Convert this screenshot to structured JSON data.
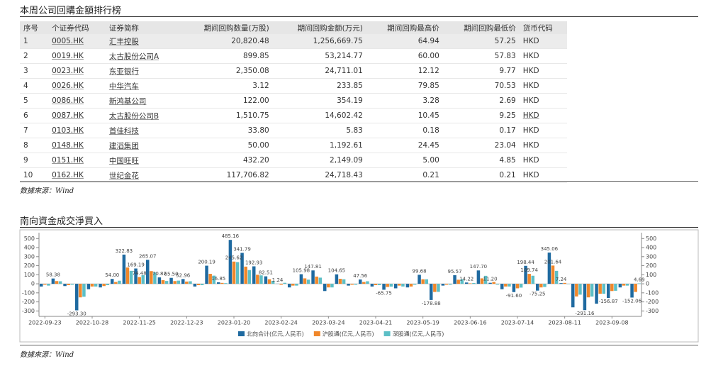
{
  "header": {
    "title": "本周公司回購金額排行榜"
  },
  "table": {
    "columns": [
      "序号",
      "个证券代码",
      "证券简称",
      "期间回购数量(万股)",
      "期间回购金额(万元)",
      "期间回购最高价",
      "期间回购最低价",
      "货币代码"
    ],
    "rows": [
      [
        "1",
        "0005.HK",
        "汇丰控股",
        "20,820.48",
        "1,256,669.75",
        "64.94",
        "57.25",
        "HKD"
      ],
      [
        "2",
        "0019.HK",
        "太古股份公司A",
        "899.85",
        "53,214.77",
        "60.00",
        "57.83",
        "HKD"
      ],
      [
        "3",
        "0023.HK",
        "东亚银行",
        "2,350.08",
        "24,711.01",
        "12.12",
        "9.77",
        "HKD"
      ],
      [
        "4",
        "0026.HK",
        "中华汽车",
        "3.12",
        "233.85",
        "79.85",
        "70.53",
        "HKD"
      ],
      [
        "5",
        "0086.HK",
        "新鸿基公司",
        "122.00",
        "354.19",
        "3.28",
        "2.69",
        "HKD"
      ],
      [
        "6",
        "0087.HK",
        "太古股份公司B",
        "1,510.75",
        "14,602.42",
        "10.45",
        "9.25",
        "HKD"
      ],
      [
        "7",
        "0103.HK",
        "首佳科技",
        "33.80",
        "5.83",
        "0.18",
        "0.17",
        "HKD"
      ],
      [
        "8",
        "0148.HK",
        "建滔集团",
        "50.00",
        "1,192.61",
        "24.45",
        "23.04",
        "HKD"
      ],
      [
        "9",
        "0151.HK",
        "中国旺旺",
        "432.20",
        "2,149.09",
        "5.00",
        "4.85",
        "HKD"
      ],
      [
        "10",
        "0162.HK",
        "世纪金花",
        "117,706.82",
        "24,718.43",
        "0.21",
        "0.21",
        "HKD"
      ]
    ]
  },
  "source1": "数據來源：Wind",
  "chart_data": {
    "type": "bar",
    "title": "南向資金成交淨買入",
    "categories": [
      "2022-09-23",
      null,
      null,
      null,
      "2022-10-28",
      null,
      null,
      null,
      "2022-11-25",
      null,
      null,
      null,
      "2022-12-23",
      null,
      null,
      null,
      "2023-01-20",
      null,
      null,
      null,
      "2023-02-24",
      null,
      null,
      null,
      "2023-03-24",
      null,
      null,
      null,
      "2023-04-21",
      null,
      null,
      null,
      "2023-05-19",
      null,
      null,
      null,
      "2023-06-16",
      null,
      null,
      null,
      "2023-07-14",
      null,
      null,
      null,
      "2023-08-11",
      null,
      null,
      null,
      "2023-09-08",
      null,
      null
    ],
    "series": [
      {
        "name": "北向合计(亿元,人民币)",
        "color": "#1f6aa0",
        "values": [
          -30,
          58.38,
          -25,
          -293.3,
          -60,
          -40,
          54.0,
          322.83,
          169.19,
          265.07,
          70.82,
          65.5,
          52.96,
          -30,
          200.19,
          16.85,
          485.16,
          341.79,
          192.93,
          82.51,
          1.24,
          -40,
          105.98,
          147.81,
          -80,
          104.65,
          -20,
          47.56,
          -30,
          -65.75,
          -50,
          -40,
          99.68,
          -178.88,
          -20,
          95.57,
          14.22,
          147.7,
          11.2,
          -60,
          -91.6,
          198.44,
          -75.25,
          345.06,
          7.24,
          -260,
          -291.16,
          -220,
          -156.87,
          -40,
          -152.06
        ],
        "value_labels": [
          null,
          "58.38",
          null,
          "-293.30",
          null,
          null,
          "54.00",
          "322.83",
          "169.19",
          "265.07",
          "70.82",
          "65.50",
          "52.96",
          null,
          "200.19",
          "16.85",
          "485.16",
          "341.79",
          "192.93",
          "82.51",
          "1.24",
          null,
          "105.98",
          "147.81",
          null,
          "104.65",
          null,
          "47.56",
          null,
          "-65.75",
          null,
          null,
          "99.68",
          "-178.88",
          null,
          "95.57",
          "14.22",
          "147.70",
          "11.20",
          null,
          "-91.60",
          "198.44",
          "-75.25",
          "345.06",
          "7.24",
          null,
          "-291.16",
          null,
          "-156.87",
          null,
          "-152.06"
        ]
      },
      {
        "name": "沪股通(亿元,人民币)",
        "color": "#f0872a",
        "values": [
          -10,
          30,
          -15,
          -150,
          -30,
          -25,
          20,
          180,
          74.48,
          140,
          40,
          30,
          25,
          -15,
          110,
          10,
          245.62,
          190,
          100,
          50,
          -10,
          -20,
          60,
          80,
          -40,
          55,
          -10,
          20,
          -15,
          -35,
          -20,
          -30,
          50,
          -90,
          -10,
          45,
          5,
          60,
          20,
          -30,
          -50,
          109.74,
          -40,
          201.64,
          10,
          -140,
          -150,
          -110,
          -80,
          -20,
          -90
        ],
        "value_labels": [
          null,
          null,
          null,
          null,
          null,
          null,
          null,
          null,
          "74.48",
          null,
          null,
          null,
          null,
          null,
          null,
          null,
          "245.62",
          null,
          null,
          null,
          null,
          null,
          null,
          null,
          null,
          null,
          null,
          null,
          null,
          null,
          null,
          null,
          null,
          null,
          null,
          null,
          null,
          null,
          null,
          null,
          null,
          "109.74",
          null,
          "201.64",
          null,
          null,
          null,
          null,
          null,
          null,
          null
        ]
      },
      {
        "name": "深股通(亿元,人民币)",
        "color": "#5cbfc6",
        "values": [
          -20,
          28,
          -10,
          -143,
          -30,
          -15,
          34,
          143,
          95,
          125,
          31,
          35,
          28,
          -15,
          90,
          7,
          240,
          152,
          93,
          32,
          11,
          -20,
          46,
          68,
          -40,
          50,
          -10,
          28,
          -15,
          -31,
          -30,
          -10,
          50,
          -89,
          -10,
          51,
          9,
          88,
          -9,
          -30,
          -42,
          89,
          -35,
          143,
          -3,
          -120,
          -141,
          -110,
          -77,
          -20,
          4.69
        ],
        "value_labels": [
          null,
          null,
          null,
          null,
          null,
          null,
          null,
          null,
          null,
          null,
          null,
          null,
          null,
          null,
          null,
          null,
          null,
          null,
          null,
          null,
          null,
          null,
          null,
          null,
          null,
          null,
          null,
          null,
          null,
          null,
          null,
          null,
          null,
          null,
          null,
          null,
          null,
          null,
          null,
          null,
          null,
          null,
          null,
          null,
          null,
          null,
          null,
          null,
          null,
          null,
          "4.69"
        ]
      }
    ],
    "ylim": [
      -360,
      565
    ],
    "yticks": [
      -300,
      -200,
      -100,
      0,
      100,
      200,
      300,
      400,
      500
    ]
  },
  "source2": "数據來源：Wind"
}
